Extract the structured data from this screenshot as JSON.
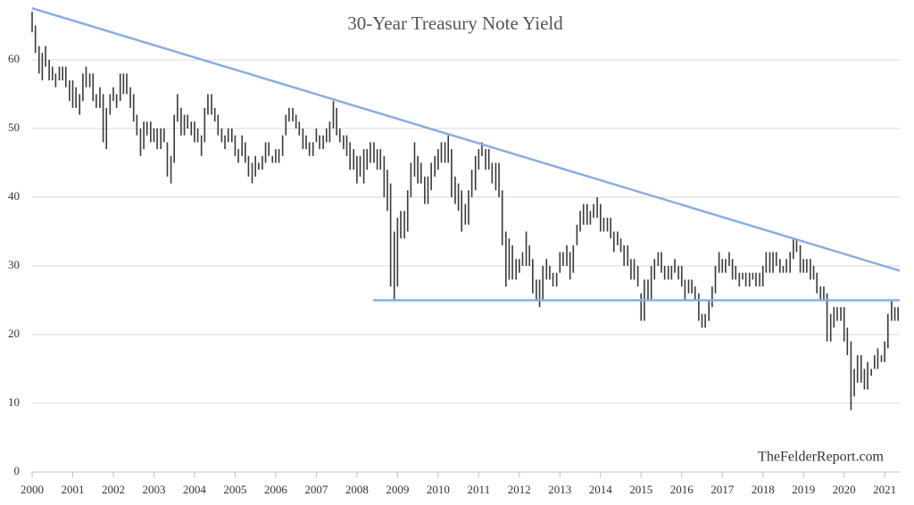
{
  "chart_data": {
    "type": "range_bar",
    "title": "30-Year Treasury Note Yield",
    "watermark": "TheFelderReport.com",
    "color": "#3a3a3a",
    "grid": true,
    "xlim": [
      2000,
      2021.37
    ],
    "ylim": [
      0,
      68
    ],
    "xticks": [
      2000,
      2001,
      2002,
      2003,
      2004,
      2005,
      2006,
      2007,
      2008,
      2009,
      2010,
      2011,
      2012,
      2013,
      2014,
      2015,
      2016,
      2017,
      2018,
      2019,
      2020,
      2021
    ],
    "yticks": [
      0,
      10,
      20,
      30,
      40,
      50,
      60
    ],
    "trendlines": [
      {
        "color": "#8aaee0",
        "x": [
          2000,
          2021.37
        ],
        "y": [
          67.5,
          29.3
        ]
      },
      {
        "color": "#8aaee0",
        "x": [
          2008.4,
          2021.37
        ],
        "y": [
          25,
          25
        ]
      }
    ],
    "x": [
      2000,
      2000.08,
      2000.17,
      2000.25,
      2000.33,
      2000.42,
      2000.5,
      2000.58,
      2000.67,
      2000.75,
      2000.83,
      2000.92,
      2001,
      2001.08,
      2001.17,
      2001.25,
      2001.33,
      2001.42,
      2001.5,
      2001.58,
      2001.67,
      2001.75,
      2001.83,
      2001.92,
      2002,
      2002.08,
      2002.17,
      2002.25,
      2002.33,
      2002.42,
      2002.5,
      2002.58,
      2002.67,
      2002.75,
      2002.83,
      2002.92,
      2003,
      2003.08,
      2003.17,
      2003.25,
      2003.33,
      2003.42,
      2003.5,
      2003.58,
      2003.67,
      2003.75,
      2003.83,
      2003.92,
      2004,
      2004.08,
      2004.17,
      2004.25,
      2004.33,
      2004.42,
      2004.5,
      2004.58,
      2004.67,
      2004.75,
      2004.83,
      2004.92,
      2005,
      2005.08,
      2005.17,
      2005.25,
      2005.33,
      2005.42,
      2005.5,
      2005.58,
      2005.67,
      2005.75,
      2005.83,
      2005.92,
      2006,
      2006.08,
      2006.17,
      2006.25,
      2006.33,
      2006.42,
      2006.5,
      2006.58,
      2006.67,
      2006.75,
      2006.83,
      2006.92,
      2007,
      2007.08,
      2007.17,
      2007.25,
      2007.33,
      2007.42,
      2007.5,
      2007.58,
      2007.67,
      2007.75,
      2007.83,
      2007.92,
      2008,
      2008.08,
      2008.17,
      2008.25,
      2008.33,
      2008.42,
      2008.5,
      2008.58,
      2008.67,
      2008.75,
      2008.83,
      2008.92,
      2009,
      2009.08,
      2009.17,
      2009.25,
      2009.33,
      2009.42,
      2009.5,
      2009.58,
      2009.67,
      2009.75,
      2009.83,
      2009.92,
      2010,
      2010.08,
      2010.17,
      2010.25,
      2010.33,
      2010.42,
      2010.5,
      2010.58,
      2010.67,
      2010.75,
      2010.83,
      2010.92,
      2011,
      2011.08,
      2011.17,
      2011.25,
      2011.33,
      2011.42,
      2011.5,
      2011.58,
      2011.67,
      2011.75,
      2011.83,
      2011.92,
      2012,
      2012.08,
      2012.17,
      2012.25,
      2012.33,
      2012.42,
      2012.5,
      2012.58,
      2012.67,
      2012.75,
      2012.83,
      2012.92,
      2013,
      2013.08,
      2013.17,
      2013.25,
      2013.33,
      2013.42,
      2013.5,
      2013.58,
      2013.67,
      2013.75,
      2013.83,
      2013.92,
      2014,
      2014.08,
      2014.17,
      2014.25,
      2014.33,
      2014.42,
      2014.5,
      2014.58,
      2014.67,
      2014.75,
      2014.83,
      2014.92,
      2015,
      2015.08,
      2015.17,
      2015.25,
      2015.33,
      2015.42,
      2015.5,
      2015.58,
      2015.67,
      2015.75,
      2015.83,
      2015.92,
      2016,
      2016.08,
      2016.17,
      2016.25,
      2016.33,
      2016.42,
      2016.5,
      2016.58,
      2016.67,
      2016.75,
      2016.83,
      2016.92,
      2017,
      2017.08,
      2017.17,
      2017.25,
      2017.33,
      2017.42,
      2017.5,
      2017.58,
      2017.67,
      2017.75,
      2017.83,
      2017.92,
      2018,
      2018.08,
      2018.17,
      2018.25,
      2018.33,
      2018.42,
      2018.5,
      2018.58,
      2018.67,
      2018.75,
      2018.83,
      2018.92,
      2019,
      2019.08,
      2019.17,
      2019.25,
      2019.33,
      2019.42,
      2019.5,
      2019.58,
      2019.67,
      2019.75,
      2019.83,
      2019.92,
      2020,
      2020.08,
      2020.17,
      2020.25,
      2020.33,
      2020.42,
      2020.5,
      2020.58,
      2020.67,
      2020.75,
      2020.83,
      2020.92,
      2021,
      2021.08,
      2021.17,
      2021.25,
      2021.33
    ],
    "high": [
      67,
      65,
      62,
      61,
      62,
      60,
      59,
      58,
      59,
      59,
      59,
      57,
      57,
      56,
      55,
      58,
      59,
      58,
      58,
      55,
      56,
      55,
      53,
      55,
      56,
      55,
      58,
      58,
      58,
      56,
      55,
      52,
      50,
      51,
      51,
      51,
      50,
      50,
      50,
      50,
      48,
      46,
      52,
      55,
      53,
      52,
      52,
      51,
      51,
      50,
      49,
      53,
      55,
      55,
      53,
      52,
      50,
      49,
      50,
      50,
      49,
      47,
      49,
      48,
      46,
      45,
      46,
      45,
      46,
      48,
      48,
      46,
      47,
      47,
      49,
      52,
      53,
      53,
      52,
      51,
      50,
      49,
      48,
      48,
      50,
      49,
      49,
      50,
      51,
      54,
      53,
      50,
      49,
      49,
      48,
      47,
      46,
      46,
      47,
      47,
      48,
      48,
      47,
      47,
      46,
      44,
      42,
      35,
      37,
      38,
      38,
      41,
      45,
      48,
      46,
      45,
      43,
      43,
      45,
      46,
      47,
      48,
      48,
      49,
      47,
      43,
      42,
      41,
      39,
      41,
      44,
      46,
      47,
      48,
      47,
      47,
      45,
      45,
      45,
      41,
      35,
      34,
      33,
      31,
      31,
      32,
      35,
      33,
      31,
      28,
      28,
      30,
      31,
      30,
      29,
      29,
      32,
      32,
      33,
      32,
      33,
      36,
      38,
      39,
      39,
      38,
      39,
      40,
      39,
      37,
      37,
      37,
      35,
      35,
      34,
      33,
      33,
      31,
      31,
      30,
      26,
      28,
      28,
      30,
      31,
      32,
      32,
      30,
      30,
      30,
      31,
      30,
      30,
      28,
      28,
      28,
      27,
      26,
      23,
      23,
      25,
      27,
      30,
      32,
      31,
      31,
      32,
      31,
      30,
      29,
      29,
      29,
      29,
      29,
      29,
      29,
      30,
      32,
      32,
      32,
      32,
      31,
      30,
      31,
      32,
      34,
      34,
      33,
      31,
      31,
      31,
      30,
      29,
      27,
      27,
      26,
      23,
      24,
      24,
      24,
      24,
      21,
      19,
      15,
      17,
      17,
      15,
      16,
      15,
      17,
      18,
      17,
      19,
      23,
      25,
      24,
      24
    ],
    "low": [
      64,
      61,
      58,
      57,
      59,
      57,
      57,
      56,
      57,
      57,
      56,
      54,
      53,
      53,
      52,
      54,
      56,
      56,
      54,
      53,
      53,
      48,
      47,
      52,
      54,
      53,
      54,
      55,
      55,
      53,
      51,
      49,
      46,
      47,
      49,
      48,
      48,
      47,
      47,
      48,
      43,
      42,
      45,
      51,
      49,
      49,
      50,
      49,
      48,
      48,
      46,
      48,
      52,
      52,
      51,
      49,
      48,
      47,
      48,
      48,
      46,
      45,
      46,
      45,
      43,
      42,
      43,
      44,
      44,
      45,
      46,
      45,
      45,
      45,
      46,
      49,
      51,
      51,
      50,
      49,
      47,
      47,
      46,
      46,
      48,
      47,
      47,
      48,
      48,
      50,
      49,
      48,
      47,
      46,
      44,
      44,
      42,
      43,
      42,
      44,
      45,
      45,
      44,
      44,
      40,
      38,
      27,
      25,
      27,
      34,
      34,
      35,
      40,
      43,
      42,
      42,
      39,
      39,
      41,
      43,
      44,
      45,
      45,
      45,
      40,
      39,
      38,
      35,
      36,
      36,
      40,
      41,
      44,
      46,
      44,
      44,
      42,
      41,
      40,
      33,
      27,
      28,
      28,
      28,
      29,
      30,
      30,
      30,
      26,
      25,
      24,
      25,
      28,
      28,
      27,
      27,
      29,
      30,
      30,
      28,
      29,
      33,
      35,
      36,
      36,
      36,
      37,
      37,
      35,
      35,
      35,
      34,
      32,
      33,
      32,
      30,
      30,
      28,
      28,
      27,
      22,
      22,
      25,
      25,
      28,
      30,
      29,
      28,
      28,
      28,
      29,
      28,
      27,
      25,
      26,
      26,
      25,
      22,
      21,
      21,
      22,
      24,
      26,
      29,
      29,
      29,
      30,
      28,
      28,
      27,
      28,
      27,
      27,
      28,
      27,
      27,
      27,
      29,
      29,
      29,
      30,
      29,
      29,
      29,
      29,
      31,
      32,
      29,
      29,
      29,
      28,
      28,
      26,
      25,
      25,
      19,
      19,
      21,
      22,
      22,
      19,
      17,
      9,
      11,
      13,
      13,
      12,
      12,
      14,
      15,
      15,
      16,
      16,
      18,
      22,
      22,
      22
    ]
  }
}
